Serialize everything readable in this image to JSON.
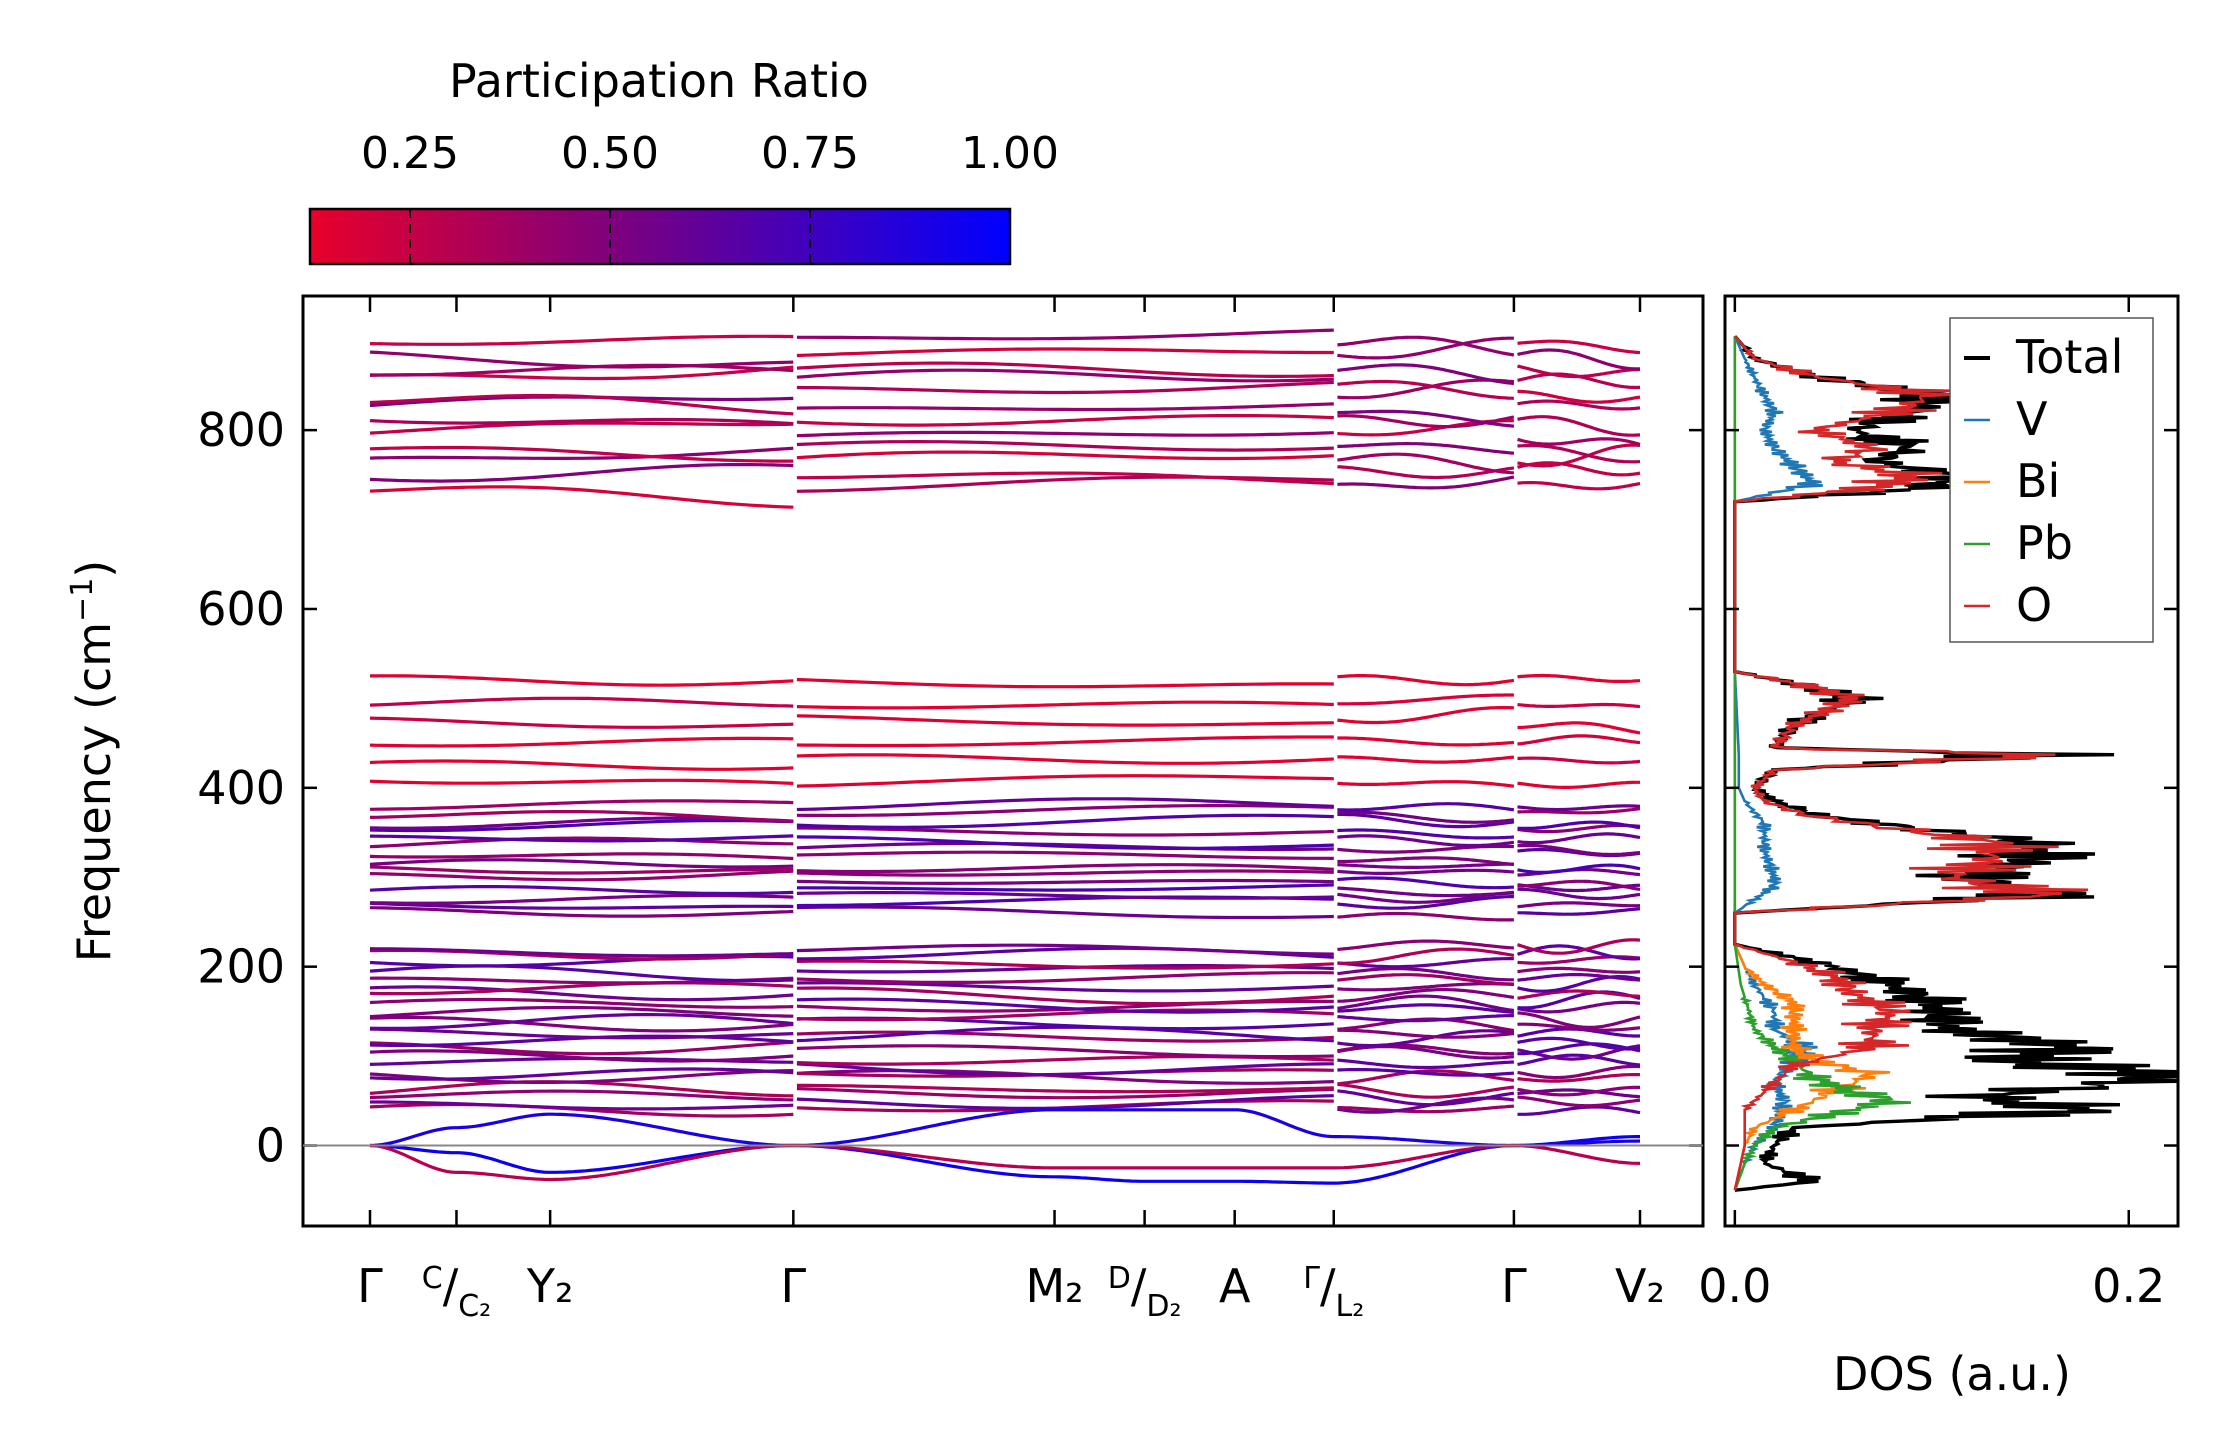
{
  "chart_data": [
    {
      "type": "line",
      "name": "phonon-dispersion",
      "ylabel_main": "Frequency (cm",
      "ylabel_sup": "−1",
      "ylabel_end": ")",
      "ylim": [
        -90,
        950
      ],
      "yticks": [
        0,
        200,
        400,
        600,
        800
      ],
      "xticks": [
        {
          "pos": 0.0,
          "label": "Γ"
        },
        {
          "pos": 0.48,
          "label": "C/C₂"
        },
        {
          "pos": 1.0,
          "label": "Y₂"
        },
        {
          "pos": 2.35,
          "label": "Γ"
        },
        {
          "pos": 3.8,
          "label": "M₂"
        },
        {
          "pos": 4.3,
          "label": "D/D₂"
        },
        {
          "pos": 4.8,
          "label": "A"
        },
        {
          "pos": 5.35,
          "label": "Γ/L₂"
        },
        {
          "pos": 6.35,
          "label": "Γ"
        },
        {
          "pos": 7.05,
          "label": "V₂"
        }
      ],
      "segments": [
        {
          "from": "Γ",
          "to": "Γ",
          "x0": 0.0,
          "x1": 2.35
        },
        {
          "from": "Γ",
          "to": "Γ/L₂",
          "x0": 2.35,
          "x1": 5.35
        },
        {
          "from": "Γ/L₂",
          "to": "Γ",
          "x0": 5.35,
          "x1": 6.35
        },
        {
          "from": "Γ",
          "to": "V₂",
          "x0": 6.35,
          "x1": 7.05
        }
      ],
      "optic_band_groups": [
        {
          "range": [
            730,
            905
          ],
          "count": 12,
          "mean_participation": 0.35
        },
        {
          "range": [
            395,
            530
          ],
          "count": 6,
          "mean_participation": 0.1
        },
        {
          "range": [
            255,
            385
          ],
          "count": 14,
          "mean_participation": 0.55
        },
        {
          "range": [
            35,
            225
          ],
          "count": 22,
          "mean_participation": 0.5
        }
      ],
      "acoustic_bands": [
        {
          "name": "acoustic-1",
          "values_at_ticks": [
            0,
            -8,
            -30,
            0,
            -35,
            -40,
            -40,
            -42,
            0,
            10
          ],
          "mean_participation": 0.95
        },
        {
          "name": "acoustic-2",
          "values_at_ticks": [
            0,
            20,
            35,
            0,
            40,
            40,
            40,
            10,
            0,
            5
          ],
          "mean_participation": 0.9
        },
        {
          "name": "acoustic-3",
          "values_at_ticks": [
            0,
            -30,
            -38,
            0,
            -25,
            -25,
            -25,
            -25,
            0,
            -20
          ],
          "mean_participation": 0.3
        }
      ]
    },
    {
      "type": "line",
      "name": "density-of-states",
      "xlabel": "DOS (a.u.)",
      "xlim": [
        -0.005,
        0.225
      ],
      "xticks": [
        0.0,
        0.2
      ],
      "xtick_labels": [
        "0.0",
        "0.2"
      ],
      "legend_position": "top-right",
      "series": [
        {
          "name": "Total",
          "color": "#000000",
          "points": [
            [
              -50,
              0.0
            ],
            [
              -40,
              0.04
            ],
            [
              -20,
              0.015
            ],
            [
              0,
              0.02
            ],
            [
              20,
              0.03
            ],
            [
              40,
              0.18
            ],
            [
              55,
              0.12
            ],
            [
              70,
              0.2
            ],
            [
              80,
              0.22
            ],
            [
              95,
              0.14
            ],
            [
              110,
              0.17
            ],
            [
              130,
              0.11
            ],
            [
              160,
              0.1
            ],
            [
              180,
              0.08
            ],
            [
              200,
              0.05
            ],
            [
              215,
              0.02
            ],
            [
              225,
              0.0
            ],
            [
              260,
              0.0
            ],
            [
              280,
              0.16
            ],
            [
              300,
              0.12
            ],
            [
              320,
              0.15
            ],
            [
              340,
              0.15
            ],
            [
              355,
              0.09
            ],
            [
              370,
              0.04
            ],
            [
              385,
              0.02
            ],
            [
              400,
              0.01
            ],
            [
              420,
              0.02
            ],
            [
              437,
              0.16
            ],
            [
              445,
              0.02
            ],
            [
              470,
              0.03
            ],
            [
              480,
              0.04
            ],
            [
              500,
              0.06
            ],
            [
              515,
              0.035
            ],
            [
              530,
              0.0
            ],
            [
              720,
              0.0
            ],
            [
              735,
              0.1
            ],
            [
              750,
              0.11
            ],
            [
              765,
              0.07
            ],
            [
              780,
              0.09
            ],
            [
              800,
              0.06
            ],
            [
              820,
              0.09
            ],
            [
              840,
              0.1
            ],
            [
              860,
              0.04
            ],
            [
              880,
              0.01
            ],
            [
              905,
              0.0
            ]
          ]
        },
        {
          "name": "V",
          "color": "#1f77b4",
          "points": [
            [
              -50,
              0.0
            ],
            [
              -20,
              0.005
            ],
            [
              0,
              0.01
            ],
            [
              20,
              0.02
            ],
            [
              50,
              0.025
            ],
            [
              70,
              0.02
            ],
            [
              95,
              0.03
            ],
            [
              110,
              0.035
            ],
            [
              130,
              0.02
            ],
            [
              150,
              0.02
            ],
            [
              180,
              0.01
            ],
            [
              200,
              0.005
            ],
            [
              225,
              0.0
            ],
            [
              260,
              0.0
            ],
            [
              290,
              0.02
            ],
            [
              300,
              0.02
            ],
            [
              330,
              0.015
            ],
            [
              360,
              0.015
            ],
            [
              385,
              0.005
            ],
            [
              400,
              0.002
            ],
            [
              437,
              0.002
            ],
            [
              530,
              0.0
            ],
            [
              720,
              0.0
            ],
            [
              740,
              0.04
            ],
            [
              760,
              0.03
            ],
            [
              780,
              0.02
            ],
            [
              800,
              0.015
            ],
            [
              820,
              0.02
            ],
            [
              850,
              0.012
            ],
            [
              880,
              0.005
            ],
            [
              905,
              0.0
            ]
          ]
        },
        {
          "name": "Bi",
          "color": "#ff7f0e",
          "points": [
            [
              -50,
              0.0
            ],
            [
              -20,
              0.003
            ],
            [
              0,
              0.005
            ],
            [
              20,
              0.01
            ],
            [
              50,
              0.04
            ],
            [
              70,
              0.06
            ],
            [
              80,
              0.07
            ],
            [
              95,
              0.04
            ],
            [
              110,
              0.03
            ],
            [
              130,
              0.03
            ],
            [
              160,
              0.03
            ],
            [
              180,
              0.015
            ],
            [
              200,
              0.005
            ],
            [
              225,
              0.0
            ],
            [
              905,
              0.0
            ]
          ]
        },
        {
          "name": "Pb",
          "color": "#2ca02c",
          "points": [
            [
              -50,
              0.0
            ],
            [
              -20,
              0.005
            ],
            [
              0,
              0.01
            ],
            [
              20,
              0.02
            ],
            [
              40,
              0.06
            ],
            [
              50,
              0.08
            ],
            [
              60,
              0.06
            ],
            [
              75,
              0.04
            ],
            [
              95,
              0.03
            ],
            [
              110,
              0.02
            ],
            [
              130,
              0.01
            ],
            [
              180,
              0.003
            ],
            [
              225,
              0.0
            ],
            [
              905,
              0.0
            ]
          ]
        },
        {
          "name": "O",
          "color": "#d62728",
          "points": [
            [
              -50,
              0.0
            ],
            [
              0,
              0.005
            ],
            [
              40,
              0.005
            ],
            [
              70,
              0.02
            ],
            [
              90,
              0.03
            ],
            [
              110,
              0.07
            ],
            [
              130,
              0.07
            ],
            [
              150,
              0.08
            ],
            [
              170,
              0.06
            ],
            [
              190,
              0.05
            ],
            [
              205,
              0.03
            ],
            [
              225,
              0.0
            ],
            [
              260,
              0.0
            ],
            [
              280,
              0.16
            ],
            [
              300,
              0.11
            ],
            [
              320,
              0.13
            ],
            [
              340,
              0.13
            ],
            [
              355,
              0.08
            ],
            [
              370,
              0.035
            ],
            [
              385,
              0.015
            ],
            [
              400,
              0.01
            ],
            [
              420,
              0.02
            ],
            [
              437,
              0.16
            ],
            [
              445,
              0.02
            ],
            [
              470,
              0.03
            ],
            [
              480,
              0.04
            ],
            [
              500,
              0.06
            ],
            [
              515,
              0.035
            ],
            [
              530,
              0.0
            ],
            [
              720,
              0.0
            ],
            [
              735,
              0.07
            ],
            [
              750,
              0.09
            ],
            [
              765,
              0.05
            ],
            [
              780,
              0.07
            ],
            [
              800,
              0.04
            ],
            [
              820,
              0.08
            ],
            [
              840,
              0.1
            ],
            [
              860,
              0.04
            ],
            [
              880,
              0.01
            ],
            [
              905,
              0.0
            ]
          ]
        }
      ]
    }
  ],
  "colorbar": {
    "title": "Participation Ratio",
    "ticks": [
      0.25,
      0.5,
      0.75,
      1.0
    ],
    "tick_labels": [
      "0.25",
      "0.50",
      "0.75",
      "1.00"
    ],
    "range": [
      0.125,
      1.0
    ],
    "color_low": "#e8002a",
    "color_mid": "#7a0080",
    "color_high": "#0000ff"
  }
}
